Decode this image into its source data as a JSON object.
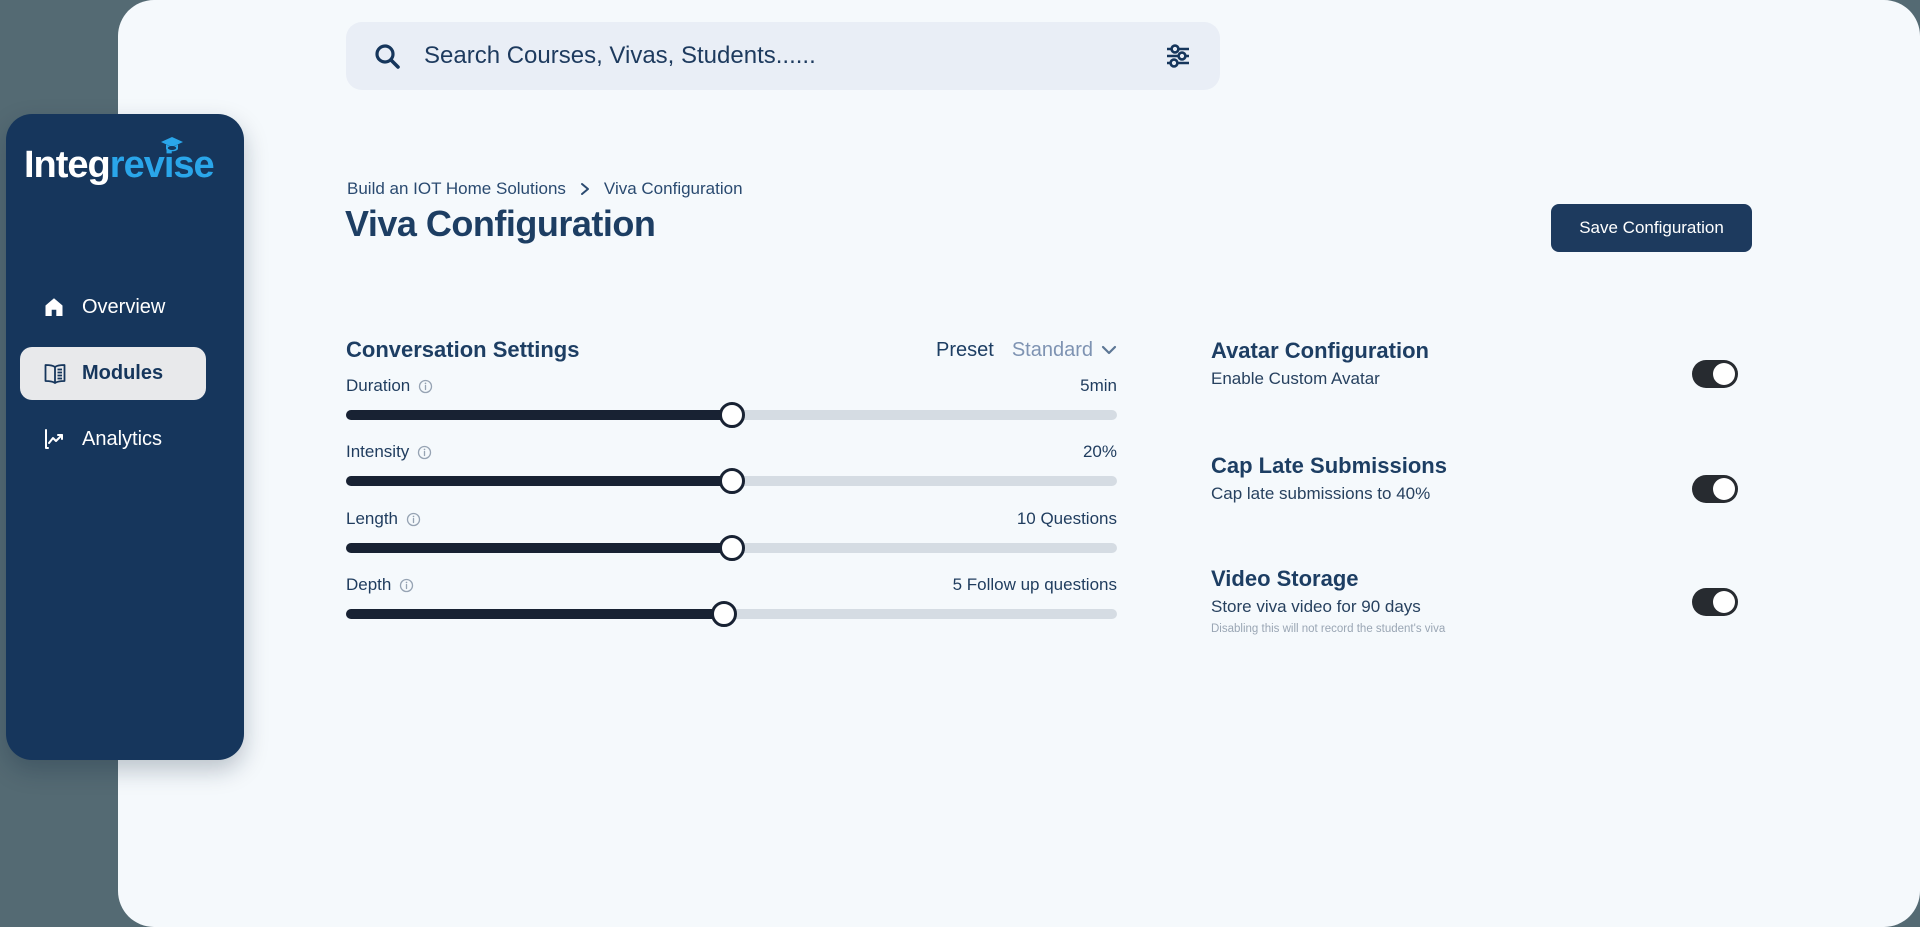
{
  "sidebar": {
    "logo": {
      "part1": "Integ",
      "part2": "revise"
    },
    "items": [
      {
        "label": "Overview",
        "icon": "home-icon",
        "active": false
      },
      {
        "label": "Modules",
        "icon": "book-icon",
        "active": true
      },
      {
        "label": "Analytics",
        "icon": "chart-icon",
        "active": false
      }
    ]
  },
  "search": {
    "placeholder": "Search Courses, Vivas, Students......"
  },
  "header": {
    "breadcrumb": {
      "item1": "Build an IOT Home Solutions",
      "item2": "Viva Configuration"
    },
    "title": "Viva Configuration",
    "save_label": "Save Configuration"
  },
  "conversation": {
    "heading": "Conversation Settings",
    "preset_label": "Preset",
    "preset_value": "Standard",
    "sliders": [
      {
        "label": "Duration",
        "value": "5min",
        "percent": 50
      },
      {
        "label": "Intensity",
        "value": "20%",
        "percent": 50
      },
      {
        "label": "Length",
        "value": "10 Questions",
        "percent": 50
      },
      {
        "label": "Depth",
        "value": "5 Follow up questions",
        "percent": 49
      }
    ]
  },
  "options": [
    {
      "heading": "Avatar Configuration",
      "description": "Enable Custom Avatar",
      "note": "",
      "enabled": true
    },
    {
      "heading": "Cap Late Submissions",
      "description": "Cap late submissions to 40%",
      "note": "",
      "enabled": true
    },
    {
      "heading": "Video Storage",
      "description": "Store viva video for 90 days",
      "note": "Disabling this will not record the student's viva",
      "enabled": true
    }
  ],
  "colors": {
    "background": "#546a73",
    "card": "#f5f9fc",
    "sidebar": "#16365c",
    "brand_blue": "#2aa6ea",
    "text_navy": "#1d3e63",
    "slider_fill": "#182233",
    "slider_track": "#d5dce3",
    "toggle_on": "#272b30",
    "preset_value": "#7e93b2"
  }
}
